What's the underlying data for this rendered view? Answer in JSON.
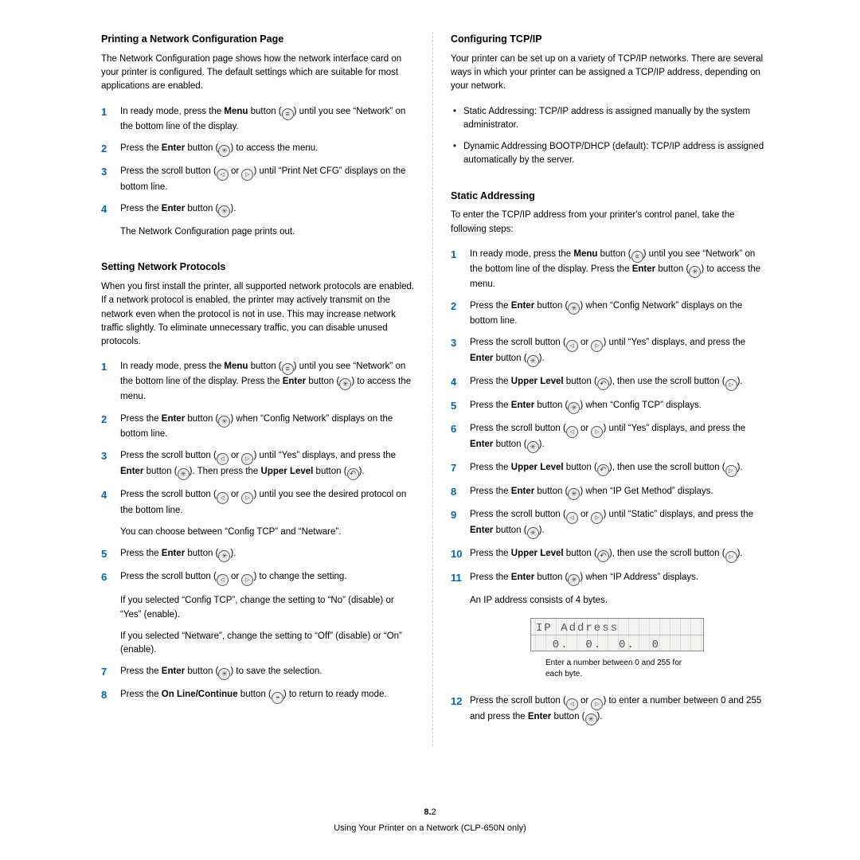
{
  "left": {
    "sec1": {
      "heading": "Printing a Network Configuration Page",
      "intro": "The Network Configuration page shows how the network interface card on your printer is configured. The default settings which are suitable for most applications are enabled.",
      "steps": {
        "s1a": "In ready mode, press the ",
        "s1b": " button (",
        "s1c": ") until you see “Network” on the bottom line of the display.",
        "s2a": "Press the ",
        "s2b": " button (",
        "s2c": ") to access the menu.",
        "s3a": "Press the scroll button (",
        "s3b": " or ",
        "s3c": ") until “Print Net CFG” displays on the bottom line.",
        "s4a": "Press the ",
        "s4b": " button (",
        "s4c": ").",
        "s4sub": "The Network Configuration page prints out."
      }
    },
    "sec2": {
      "heading": "Setting Network Protocols",
      "intro": "When you first install the printer, all supported network protocols are enabled. If a network protocol is enabled, the printer may actively transmit on the network even when the protocol is not in use. This may increase network traffic slightly. To eliminate unnecessary traffic, you can disable unused protocols.",
      "steps": {
        "s1a": "In ready mode, press the ",
        "s1b": " button (",
        "s1c": ") until you see “Network” on the bottom line of the display. Press the ",
        "s1d": " button (",
        "s1e": ") to access the menu.",
        "s2a": "Press the ",
        "s2b": " button (",
        "s2c": ") when “Config Network” displays on the bottom line.",
        "s3a": "Press the scroll button (",
        "s3b": " or ",
        "s3c": ") until “Yes” displays, and press the ",
        "s3d": " button (",
        "s3e": "). Then press the ",
        "s3f": " button (",
        "s3g": ").",
        "s4a": "Press the scroll button (",
        "s4b": " or ",
        "s4c": ") until you see the desired protocol on the bottom line.",
        "s4sub": "You can choose between “Config TCP” and “Netware”.",
        "s5a": "Press the ",
        "s5b": " button (",
        "s5c": ").",
        "s6a": "Press the scroll button (",
        "s6b": " or ",
        "s6c": ") to change the setting.",
        "s6sub1": "If you selected “Config TCP”, change the setting to “No” (disable) or “Yes” (enable).",
        "s6sub2": "If you selected “Netware”, change the setting to “Off” (disable) or “On” (enable).",
        "s7a": "Press the ",
        "s7b": " button (",
        "s7c": ") to save the selection.",
        "s8a": "Press the ",
        "s8b": " button (",
        "s8c": ") to return to ready mode."
      }
    }
  },
  "right": {
    "sec1": {
      "heading": "Configuring TCP/IP",
      "intro": "Your printer can be set up on a variety of TCP/IP networks. There are several ways in which your printer can be assigned a TCP/IP address, depending on your network.",
      "b1": "Static Addressing: TCP/IP address is assigned manually by the system administrator.",
      "b2": "Dynamic Addressing BOOTP/DHCP (default): TCP/IP address is assigned automatically by the server."
    },
    "sec2": {
      "heading": "Static Addressing",
      "intro": "To enter the TCP/IP address from your printer's control panel, take the following steps:",
      "steps": {
        "s1a": "In ready mode, press the ",
        "s1b": " button (",
        "s1c": ") until you see “Network” on the bottom line of the display. Press the ",
        "s1d": " button (",
        "s1e": ") to access the menu.",
        "s2a": "Press the ",
        "s2b": " button (",
        "s2c": ") when “Config Network” displays on the bottom line.",
        "s3a": "Press the scroll button (",
        "s3b": " or ",
        "s3c": ") until “Yes” displays, and press the ",
        "s3d": " button (",
        "s3e": ").",
        "s4a": "Press the ",
        "s4b": " button (",
        "s4c": "), then use the scroll button (",
        "s4d": ").",
        "s5a": "Press the ",
        "s5b": " button (",
        "s5c": ") when “Config TCP” displays.",
        "s6a": "Press the scroll button (",
        "s6b": " or ",
        "s6c": ") until “Yes” displays, and press the ",
        "s6d": " button (",
        "s6e": ").",
        "s7a": "Press the ",
        "s7b": " button (",
        "s7c": "), then use the scroll button (",
        "s7d": ").",
        "s8a": "Press the ",
        "s8b": " button (",
        "s8c": ") when “IP Get Method” displays.",
        "s9a": "Press the scroll button (",
        "s9b": " or ",
        "s9c": ") until “Static” displays, and press the ",
        "s9d": " button (",
        "s9e": ").",
        "s10a": "Press the ",
        "s10b": " button (",
        "s10c": "), then use the scroll button (",
        "s10d": ").",
        "s11a": "Press the ",
        "s11b": " button (",
        "s11c": ") when “IP Address” displays.",
        "s11sub": "An IP address consists of 4 bytes.",
        "lcd_line1": "IP Address",
        "lcd_line2": "  0.  0.  0.  0",
        "caption": "Enter a number between 0 and 255 for each byte.",
        "s12a": "Press the scroll button (",
        "s12b": " or ",
        "s12c": ") to enter a number between 0 and 255 and press the ",
        "s12d": " button (",
        "s12e": ")."
      }
    }
  },
  "labels": {
    "menu": "Menu",
    "enter": "Enter",
    "upper": "Upper Level",
    "online": "On Line/Continue"
  },
  "footer": {
    "chapter": "8.",
    "page": "2",
    "context": "Using Your Printer on a Network (CLP-650N only)"
  }
}
